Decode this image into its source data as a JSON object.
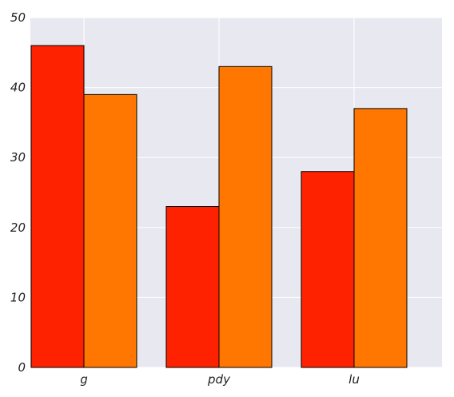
{
  "chart_data": {
    "type": "bar",
    "categories": [
      "g",
      "pdy",
      "lu"
    ],
    "series": [
      {
        "values": [
          46,
          23,
          28
        ],
        "color": "#ff2200"
      },
      {
        "values": [
          39,
          43,
          37
        ],
        "color": "#ff7700"
      }
    ],
    "ylim": [
      0,
      50
    ],
    "y_ticks": [
      0,
      10,
      20,
      30,
      40,
      50
    ],
    "grid": true,
    "grid_color": "#ffffff",
    "plot_background": "#e8e8f0",
    "bar_edge_color": "#000000"
  }
}
